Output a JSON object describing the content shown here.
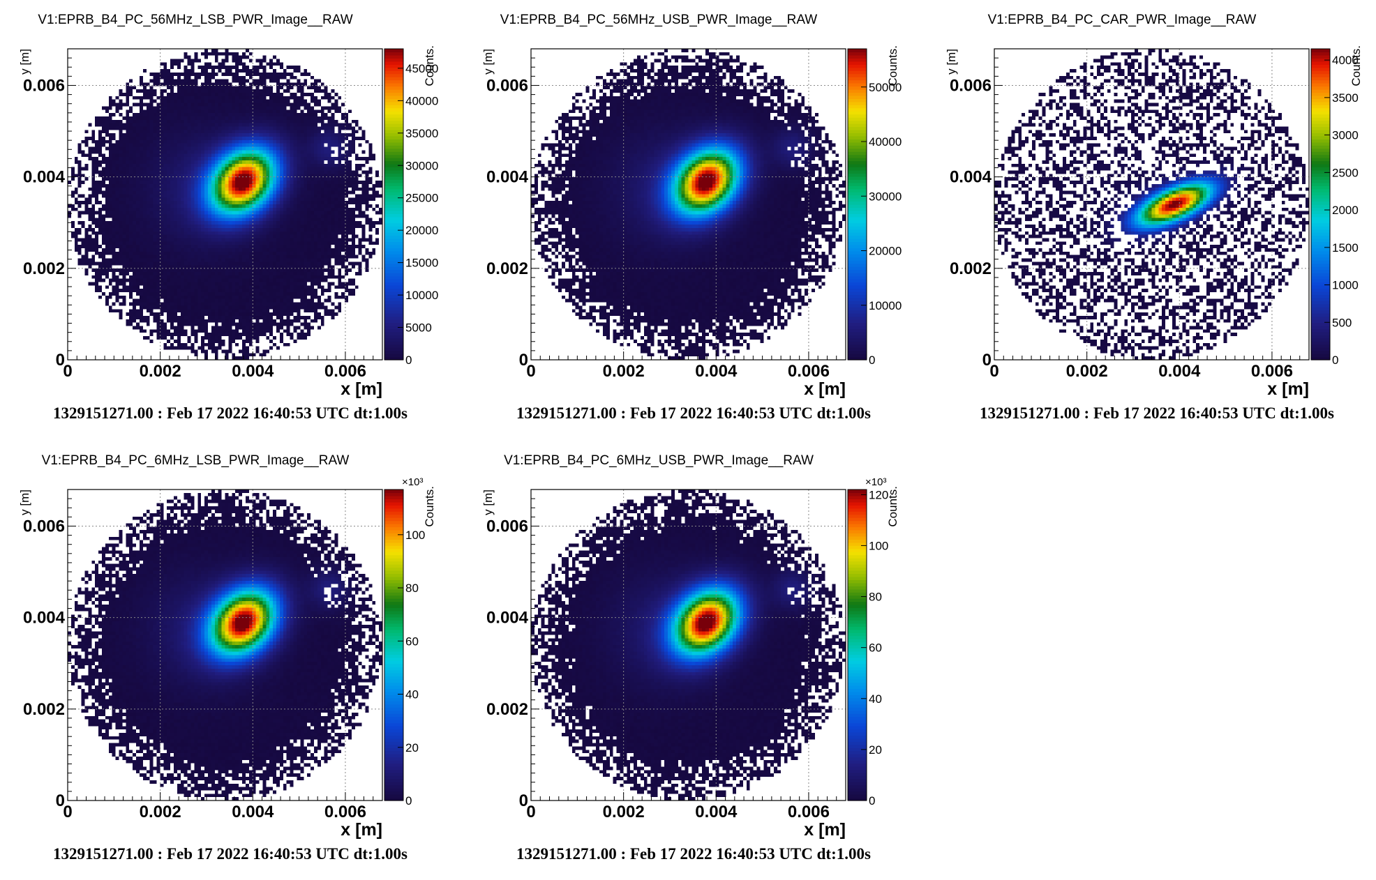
{
  "chart_data": [
    {
      "type": "heatmap",
      "title": "V1:EPRB_B4_PC_56MHz_LSB_PWR_Image__RAW",
      "xlabel": "x [m]",
      "ylabel": "y [m]",
      "zlabel": "Counts.",
      "xlim": [
        0,
        0.0068
      ],
      "ylim": [
        0,
        0.0068
      ],
      "x_ticks": [
        "0",
        "0.002",
        "0.004",
        "0.006"
      ],
      "y_ticks": [
        "0",
        "0.002",
        "0.004",
        "0.006"
      ],
      "z_range": [
        0,
        48000
      ],
      "z_multiplier": "",
      "z_ticks": [
        "0",
        "5000",
        "10000",
        "15000",
        "20000",
        "25000",
        "30000",
        "35000",
        "40000",
        "45000"
      ],
      "z_tick_values": [
        0,
        5000,
        10000,
        15000,
        20000,
        25000,
        30000,
        35000,
        40000,
        45000
      ],
      "peak": {
        "x": 0.0038,
        "y": 0.0039,
        "value": 48000
      },
      "footer": "1329151271.00 : Feb 17 2022 16:40:53 UTC dt:1.00s",
      "grid": true
    },
    {
      "type": "heatmap",
      "title": "V1:EPRB_B4_PC_56MHz_USB_PWR_Image__RAW",
      "xlabel": "x [m]",
      "ylabel": "y [m]",
      "zlabel": "Counts.",
      "xlim": [
        0,
        0.0068
      ],
      "ylim": [
        0,
        0.0068
      ],
      "x_ticks": [
        "0",
        "0.002",
        "0.004",
        "0.006"
      ],
      "y_ticks": [
        "0",
        "0.002",
        "0.004",
        "0.006"
      ],
      "z_range": [
        0,
        57000
      ],
      "z_multiplier": "",
      "z_ticks": [
        "0",
        "10000",
        "20000",
        "30000",
        "40000",
        "50000"
      ],
      "z_tick_values": [
        0,
        10000,
        20000,
        30000,
        40000,
        50000
      ],
      "peak": {
        "x": 0.0038,
        "y": 0.0039,
        "value": 57000
      },
      "footer": "1329151271.00 : Feb 17 2022 16:40:53 UTC dt:1.00s",
      "grid": true
    },
    {
      "type": "heatmap",
      "title": "V1:EPRB_B4_PC_CAR_PWR_Image__RAW",
      "xlabel": "x [m]",
      "ylabel": "y [m]",
      "zlabel": "Counts.",
      "xlim": [
        0,
        0.0068
      ],
      "ylim": [
        0,
        0.0068
      ],
      "x_ticks": [
        "0",
        "0.002",
        "0.004",
        "0.006"
      ],
      "y_ticks": [
        "0",
        "0.002",
        "0.004",
        "0.006"
      ],
      "z_range": [
        0,
        4150
      ],
      "z_multiplier": "",
      "z_ticks": [
        "0",
        "500",
        "1000",
        "1500",
        "2000",
        "2500",
        "3000",
        "3500",
        "4000"
      ],
      "z_tick_values": [
        0,
        500,
        1000,
        1500,
        2000,
        2500,
        3000,
        3500,
        4000
      ],
      "peak": {
        "x": 0.0039,
        "y": 0.0034,
        "value": 4150
      },
      "footer": "1329151271.00 : Feb 17 2022 16:40:53 UTC dt:1.00s",
      "grid": true
    },
    {
      "type": "heatmap",
      "title": "V1:EPRB_B4_PC_6MHz_LSB_PWR_Image__RAW",
      "xlabel": "x [m]",
      "ylabel": "y [m]",
      "zlabel": "Counts.",
      "xlim": [
        0,
        0.0068
      ],
      "ylim": [
        0,
        0.0068
      ],
      "x_ticks": [
        "0",
        "0.002",
        "0.004",
        "0.006"
      ],
      "y_ticks": [
        "0",
        "0.002",
        "0.004",
        "0.006"
      ],
      "z_range": [
        0,
        117
      ],
      "z_multiplier": "×10³",
      "z_ticks": [
        "0",
        "20",
        "40",
        "60",
        "80",
        "100"
      ],
      "z_tick_values": [
        0,
        20,
        40,
        60,
        80,
        100
      ],
      "peak": {
        "x": 0.0038,
        "y": 0.0039,
        "value": 117
      },
      "footer": "1329151271.00 : Feb 17 2022 16:40:53 UTC dt:1.00s",
      "grid": true
    },
    {
      "type": "heatmap",
      "title": "V1:EPRB_B4_PC_6MHz_USB_PWR_Image__RAW",
      "xlabel": "x [m]",
      "ylabel": "y [m]",
      "zlabel": "Counts.",
      "xlim": [
        0,
        0.0068
      ],
      "ylim": [
        0,
        0.0068
      ],
      "x_ticks": [
        "0",
        "0.002",
        "0.004",
        "0.006"
      ],
      "y_ticks": [
        "0",
        "0.002",
        "0.004",
        "0.006"
      ],
      "z_range": [
        0,
        122
      ],
      "z_multiplier": "×10³",
      "z_ticks": [
        "0",
        "20",
        "40",
        "60",
        "80",
        "100",
        "120"
      ],
      "z_tick_values": [
        0,
        20,
        40,
        60,
        80,
        100,
        120
      ],
      "peak": {
        "x": 0.0038,
        "y": 0.0039,
        "value": 122
      },
      "footer": "1329151271.00 : Feb 17 2022 16:40:53 UTC dt:1.00s",
      "grid": true
    }
  ]
}
